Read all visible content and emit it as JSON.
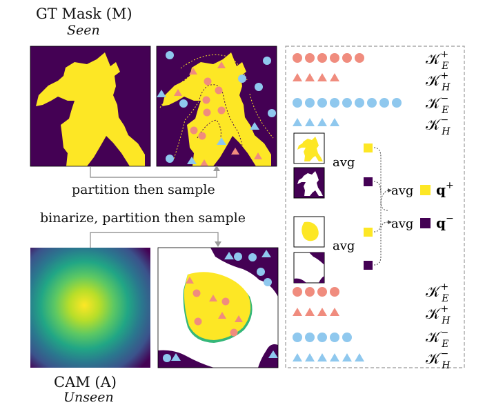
{
  "top": {
    "title": "GT Mask (M)",
    "subtitle": "Seen",
    "arrow_label": "partition then sample"
  },
  "bottom": {
    "arrow_label": "binarize, partition then sample",
    "title": "CAM (A)",
    "subtitle": "Unseen"
  },
  "right_panel": {
    "top_rows": [
      {
        "shape": "circle",
        "color": "#F08C7E",
        "count": 6,
        "label": "K_E^+"
      },
      {
        "shape": "triangle",
        "color": "#F08C7E",
        "count": 4,
        "label": "K_H^+"
      },
      {
        "shape": "circle",
        "color": "#8FC8EE",
        "count": 9,
        "label": "K_E^-"
      },
      {
        "shape": "triangle",
        "color": "#8FC8EE",
        "count": 4,
        "label": "K_H^-"
      }
    ],
    "bottom_rows": [
      {
        "shape": "circle",
        "color": "#F08C7E",
        "count": 4,
        "label": "K_E^+"
      },
      {
        "shape": "triangle",
        "color": "#F08C7E",
        "count": 4,
        "label": "K_H^+"
      },
      {
        "shape": "circle",
        "color": "#8FC8EE",
        "count": 5,
        "label": "K_E^-"
      },
      {
        "shape": "triangle",
        "color": "#8FC8EE",
        "count": 6,
        "label": "K_H^-"
      }
    ],
    "avg_label": "avg",
    "q_plus": "q+",
    "q_minus": "q−"
  },
  "colors": {
    "dark": "#440154",
    "yellow": "#FDE725",
    "salmon": "#F08C7E",
    "blue": "#8FC8EE",
    "green": "#35B779"
  }
}
